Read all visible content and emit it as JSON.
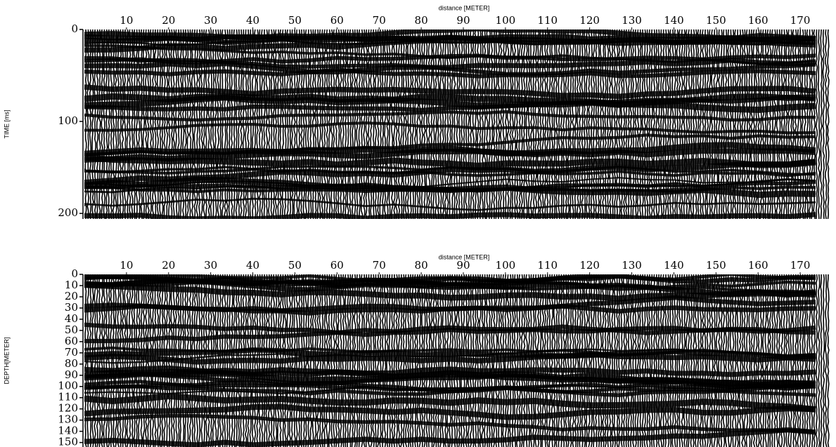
{
  "chart_data": [
    {
      "type": "seismic",
      "x_label": "distance [METER]",
      "y_label": "TIME [ms]",
      "xlim": [
        0,
        177
      ],
      "ylim": [
        0,
        206
      ],
      "y_inverted": true,
      "xticks": [
        10,
        20,
        30,
        40,
        50,
        60,
        70,
        80,
        90,
        100,
        110,
        120,
        130,
        140,
        150,
        160,
        170
      ],
      "yticks": [
        0,
        100,
        200
      ],
      "color": "#000000"
    },
    {
      "type": "seismic",
      "x_label": "distance [METER]",
      "y_label": "DEPTH[METER]",
      "xlim": [
        0,
        177
      ],
      "ylim": [
        0,
        154
      ],
      "y_inverted": true,
      "xticks": [
        10,
        20,
        30,
        40,
        50,
        60,
        70,
        80,
        90,
        100,
        110,
        120,
        130,
        140,
        150,
        160,
        170
      ],
      "yticks": [
        0,
        10,
        20,
        30,
        40,
        50,
        60,
        70,
        80,
        90,
        100,
        110,
        120,
        130,
        140,
        150
      ],
      "color": "#000000"
    }
  ]
}
